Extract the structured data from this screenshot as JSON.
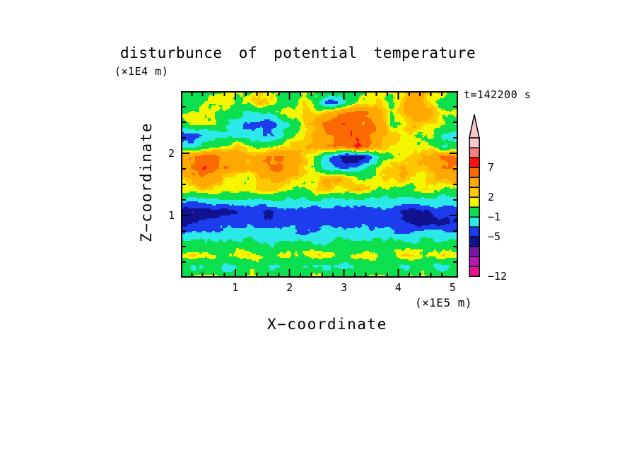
{
  "figure": {
    "title": "disturbunce of potential temperature",
    "z_units_label": "(×1E4 m)",
    "x_units_label": "(×1E5 m)",
    "time_label": "t=142200 s",
    "x_axis_label": "X−coordinate",
    "z_axis_label": "Z−coordinate"
  },
  "chart_data": {
    "type": "filled_contour",
    "title": "disturbunce of potential temperature",
    "xlabel": "X−coordinate",
    "ylabel": "Z−coordinate",
    "x_units": "×1E5 m",
    "z_units": "×1E4 m",
    "annotation": "t=142200 s",
    "x_range": [
      0,
      5.1
    ],
    "z_range": [
      0,
      3
    ],
    "x_major_ticks": [
      1,
      2,
      3,
      4,
      5
    ],
    "x_minor_step": 0.2,
    "z_major_ticks": [
      1,
      2
    ],
    "z_minor_step": 0.25,
    "grid_lines": false,
    "legend": "colorbar-right-with-top-arrow",
    "levels": [
      -12,
      -10,
      -9,
      -7,
      -5,
      -3,
      -1,
      1,
      2,
      3,
      5,
      7,
      9,
      10,
      12
    ],
    "colors_low_to_high": [
      "#ee0f93",
      "#bb15bb",
      "#7b17a8",
      "#10128f",
      "#1d3cee",
      "#2ce8e8",
      "#0ce04e",
      "#f4f600",
      "#fdc800",
      "#ffa800",
      "#fa6a00",
      "#fa0f12",
      "#f57f7d",
      "#f9c8c8"
    ],
    "colorbar_labels": [
      {
        "value": 7,
        "label": "7"
      },
      {
        "value": 2,
        "label": "2"
      },
      {
        "value": -1,
        "label": "−1"
      },
      {
        "value": -5,
        "label": "−5"
      },
      {
        "value": -12,
        "label": "−12"
      }
    ],
    "field_grid": {
      "cols": 26,
      "rows": 18,
      "x_of_col": "x = col/25*5.1 (×1E5 m)",
      "z_of_row": "z = 3 - row/17*3 (×1E4 m), row 0 = top",
      "values": [
        [
          0.5,
          0.5,
          0.2,
          0.5,
          1.2,
          0.5,
          1.0,
          1.6,
          1.6,
          0.8,
          0.3,
          0.5,
          1.0,
          1.2,
          0.5,
          0.3,
          0.5,
          1.2,
          1.6,
          1.0,
          1.6,
          3.0,
          3.5,
          2.0,
          1.2,
          0.8
        ],
        [
          0.3,
          0.2,
          0.8,
          1.6,
          1.6,
          1.0,
          1.6,
          2.5,
          1.6,
          0.8,
          1.0,
          1.6,
          0.3,
          -2.5,
          -4.0,
          -1.0,
          1.2,
          1.6,
          2.5,
          0.8,
          2.5,
          4.0,
          2.5,
          1.2,
          -0.5,
          0.3
        ],
        [
          0.8,
          1.6,
          1.6,
          0.8,
          0.3,
          -0.5,
          -1.5,
          -1.5,
          -1.0,
          0.8,
          1.6,
          1.6,
          2.0,
          3.0,
          4.5,
          5.5,
          5.5,
          4.5,
          3.0,
          0.5,
          2.5,
          3.5,
          4.0,
          2.5,
          1.6,
          1.6
        ],
        [
          0.5,
          0.8,
          1.6,
          1.0,
          -0.5,
          -2.0,
          -4.0,
          -4.0,
          -4.5,
          -2.0,
          0.3,
          1.6,
          3.0,
          5.5,
          6.5,
          6.5,
          6.0,
          5.5,
          4.5,
          0.8,
          1.6,
          3.5,
          2.5,
          1.6,
          0.8,
          -1.0
        ],
        [
          -4.0,
          -4.5,
          -3.0,
          -1.5,
          -1.0,
          -1.5,
          -2.5,
          -2.5,
          -3.0,
          -2.0,
          0.8,
          1.6,
          3.0,
          5.0,
          6.0,
          6.0,
          6.0,
          5.5,
          4.0,
          2.5,
          1.6,
          1.6,
          0.8,
          0.3,
          -1.0,
          -1.5
        ],
        [
          -2.0,
          -2.0,
          -1.0,
          0.8,
          1.6,
          2.5,
          1.6,
          0.3,
          0.3,
          1.6,
          2.5,
          2.5,
          3.5,
          4.5,
          5.5,
          5.5,
          7.5,
          5.0,
          3.0,
          1.6,
          0.8,
          1.6,
          1.6,
          0.8,
          -1.5,
          -1.0
        ],
        [
          4.5,
          5.5,
          6.0,
          6.0,
          4.5,
          4.0,
          3.5,
          4.5,
          5.5,
          5.5,
          4.5,
          3.0,
          0.8,
          -2.0,
          -4.0,
          -6.5,
          -6.5,
          -4.0,
          -1.0,
          0.8,
          1.6,
          2.5,
          3.5,
          4.5,
          5.5,
          5.5
        ],
        [
          4.0,
          5.0,
          6.5,
          5.5,
          4.5,
          3.5,
          3.0,
          4.0,
          5.0,
          5.5,
          4.5,
          2.5,
          1.6,
          -1.5,
          -2.5,
          -4.0,
          -2.5,
          -0.5,
          1.6,
          2.5,
          3.5,
          2.5,
          2.5,
          3.5,
          5.5,
          5.0
        ],
        [
          2.5,
          3.5,
          4.5,
          3.5,
          2.5,
          1.6,
          0.8,
          2.5,
          3.5,
          3.5,
          2.5,
          1.6,
          0.8,
          3.5,
          3.5,
          2.5,
          1.6,
          0.8,
          1.6,
          1.6,
          2.5,
          1.6,
          1.6,
          3.2,
          3.5,
          4.0
        ],
        [
          1.6,
          1.6,
          2.5,
          1.6,
          0.8,
          1.6,
          1.6,
          2.5,
          2.5,
          1.6,
          0.8,
          0.3,
          1.6,
          2.5,
          1.6,
          1.6,
          3.5,
          2.5,
          0.5,
          0.8,
          0.8,
          0.5,
          1.6,
          1.6,
          0.8,
          1.6
        ],
        [
          -1.5,
          -2.0,
          -1.5,
          -1.0,
          -1.5,
          -1.0,
          -1.5,
          -2.0,
          -1.5,
          -1.0,
          -1.5,
          -1.5,
          -1.0,
          -1.5,
          -2.0,
          -1.5,
          -1.0,
          -1.5,
          -1.5,
          -1.0,
          -1.5,
          -2.0,
          -1.5,
          -1.5,
          -2.0,
          -1.5
        ],
        [
          -6.0,
          -6.5,
          -6.0,
          -5.5,
          -6.0,
          -5.5,
          -4.5,
          -3.8,
          -5.5,
          -4.0,
          -3.8,
          -3.8,
          -4.0,
          -3.8,
          -3.8,
          -4.0,
          -3.8,
          -3.8,
          -4.0,
          -4.0,
          -5.5,
          -6.0,
          -5.5,
          -4.0,
          -4.5,
          -4.0
        ],
        [
          -6.0,
          -5.5,
          -4.5,
          -4.0,
          -4.0,
          -4.0,
          -4.0,
          -4.0,
          -4.0,
          -4.0,
          -4.0,
          -4.0,
          -4.2,
          -4.0,
          -4.0,
          -4.0,
          -4.0,
          -4.0,
          -4.0,
          -4.2,
          -4.5,
          -5.5,
          -6.0,
          -5.5,
          -6.0,
          -5.5
        ],
        [
          -2.8,
          -2.5,
          -2.2,
          -2.5,
          -2.2,
          -2.0,
          -2.2,
          -2.5,
          -2.2,
          -2.0,
          -2.2,
          -2.8,
          -2.2,
          -2.0,
          -1.8,
          -2.2,
          -2.5,
          -2.2,
          -2.0,
          -2.2,
          -2.8,
          -2.5,
          -2.0,
          -2.5,
          -2.8,
          -2.5
        ],
        [
          -0.3,
          0.0,
          -0.2,
          -0.5,
          -0.8,
          -0.2,
          0.0,
          -0.3,
          -0.8,
          -0.3,
          0.0,
          -0.2,
          -0.5,
          -0.8,
          -0.3,
          0.0,
          -0.3,
          -0.8,
          -0.2,
          0.0,
          -0.3,
          -0.5,
          -0.2,
          -0.3,
          0.0,
          -0.3
        ],
        [
          1.0,
          1.8,
          1.8,
          1.2,
          0.3,
          1.6,
          1.8,
          1.2,
          0.3,
          1.8,
          1.8,
          1.6,
          1.8,
          1.8,
          1.2,
          0.3,
          1.6,
          1.8,
          0.5,
          0.3,
          1.6,
          1.8,
          0.5,
          1.2,
          1.8,
          1.6
        ],
        [
          -0.5,
          -1.5,
          -1.2,
          -0.5,
          -2.0,
          -1.5,
          -0.5,
          0.0,
          -1.2,
          -1.5,
          -0.5,
          -1.5,
          -1.5,
          -1.2,
          -0.5,
          -1.5,
          -1.2,
          -0.5,
          0.0,
          -0.5,
          -1.5,
          -1.2,
          -0.5,
          -1.5,
          -1.2,
          -0.5
        ],
        [
          0.3,
          0.8,
          1.6,
          0.8,
          0.3,
          0.3,
          1.6,
          1.6,
          0.5,
          0.3,
          0.8,
          0.5,
          1.6,
          0.8,
          0.3,
          0.5,
          0.8,
          1.6,
          1.6,
          0.5,
          0.3,
          1.6,
          1.6,
          0.8,
          0.3,
          0.5
        ]
      ]
    }
  }
}
